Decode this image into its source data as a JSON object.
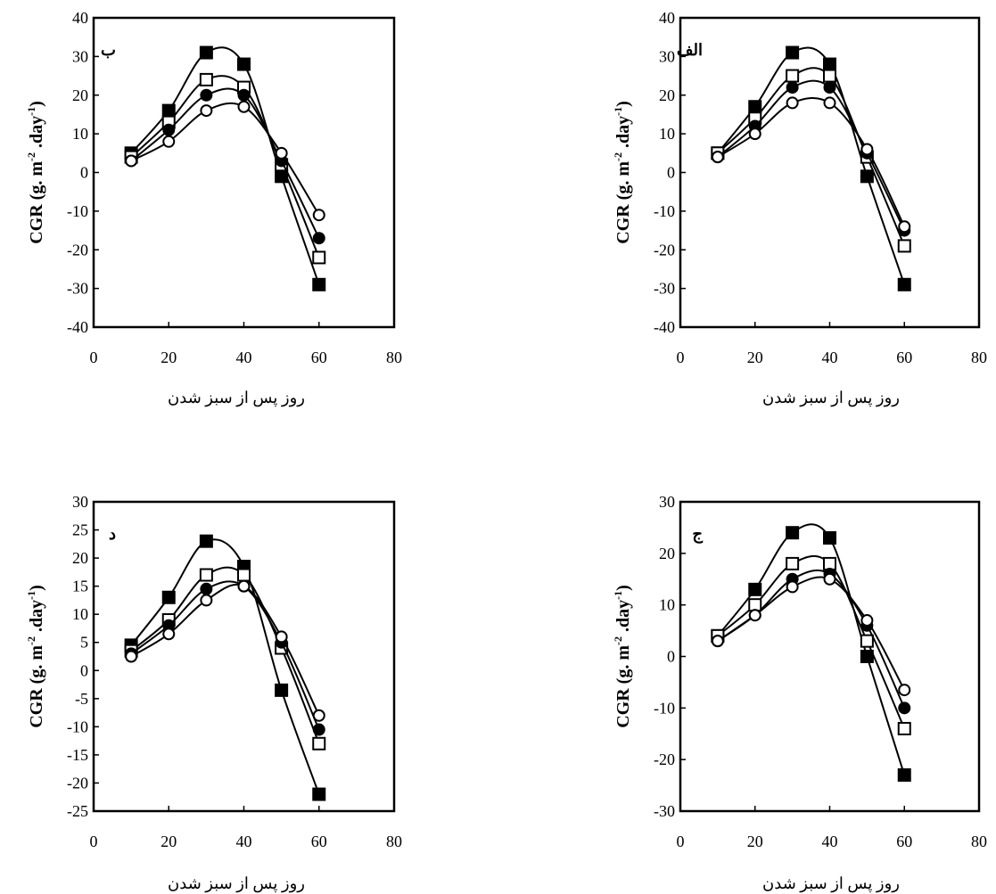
{
  "chart_data": [
    {
      "type": "line",
      "panel_label": "ب",
      "xlabel": "روز پس از سبز شدن",
      "ylabel": "CGR (g. m-2 .day-1)",
      "xlim": [
        0,
        80
      ],
      "ylim": [
        -40,
        40
      ],
      "xticks": [
        0,
        20,
        40,
        60,
        80
      ],
      "yticks": [
        -40,
        -30,
        -20,
        -10,
        0,
        10,
        20,
        30,
        40
      ],
      "x": [
        10,
        20,
        30,
        40,
        50,
        60
      ],
      "series": [
        {
          "marker": "filled-square",
          "values": [
            5,
            16,
            31,
            28,
            -1,
            -29
          ]
        },
        {
          "marker": "open-square",
          "values": [
            4,
            13,
            24,
            22,
            2,
            -22
          ]
        },
        {
          "marker": "filled-circle",
          "values": [
            3,
            11,
            20,
            20,
            3,
            -17
          ]
        },
        {
          "marker": "open-circle",
          "values": [
            3,
            8,
            16,
            17,
            5,
            -11
          ]
        }
      ]
    },
    {
      "type": "line",
      "panel_label": "الف",
      "xlabel": "روز پس از سبز شدن",
      "ylabel": "CGR (g. m-2 .day-1)",
      "xlim": [
        0,
        80
      ],
      "ylim": [
        -40,
        40
      ],
      "xticks": [
        0,
        20,
        40,
        60,
        80
      ],
      "yticks": [
        -40,
        -30,
        -20,
        -10,
        0,
        10,
        20,
        30,
        40
      ],
      "x": [
        10,
        20,
        30,
        40,
        50,
        60
      ],
      "series": [
        {
          "marker": "filled-square",
          "values": [
            5,
            17,
            31,
            28,
            -1,
            -29
          ]
        },
        {
          "marker": "open-square",
          "values": [
            5,
            14,
            25,
            25,
            4,
            -19
          ]
        },
        {
          "marker": "filled-circle",
          "values": [
            4,
            12,
            22,
            22,
            5,
            -15
          ]
        },
        {
          "marker": "open-circle",
          "values": [
            4,
            10,
            18,
            18,
            6,
            -14
          ]
        }
      ]
    },
    {
      "type": "line",
      "panel_label": "د",
      "xlabel": "روز پس از سبز شدن",
      "ylabel": "CGR (g. m-2 .day-1)",
      "xlim": [
        0,
        80
      ],
      "ylim": [
        -25,
        30
      ],
      "xticks": [
        0,
        20,
        40,
        60,
        80
      ],
      "yticks": [
        -25,
        -20,
        -15,
        -10,
        -5,
        0,
        5,
        10,
        15,
        20,
        25,
        30
      ],
      "x": [
        10,
        20,
        30,
        40,
        50,
        60
      ],
      "series": [
        {
          "marker": "filled-square",
          "values": [
            4.5,
            13,
            23,
            18.5,
            -3.5,
            -22
          ]
        },
        {
          "marker": "open-square",
          "values": [
            3.5,
            9,
            17,
            17,
            4,
            -13
          ]
        },
        {
          "marker": "filled-circle",
          "values": [
            3,
            8,
            14.5,
            15,
            5,
            -10.5
          ]
        },
        {
          "marker": "open-circle",
          "values": [
            2.5,
            6.5,
            12.5,
            15,
            6,
            -8
          ]
        }
      ]
    },
    {
      "type": "line",
      "panel_label": "ج",
      "xlabel": "روز پس از سبز شدن",
      "ylabel": "CGR (g. m-2 .day-1)",
      "xlim": [
        0,
        80
      ],
      "ylim": [
        -30,
        30
      ],
      "xticks": [
        0,
        20,
        40,
        60,
        80
      ],
      "yticks": [
        -30,
        -20,
        -10,
        0,
        10,
        20,
        30
      ],
      "x": [
        10,
        20,
        30,
        40,
        50,
        60
      ],
      "series": [
        {
          "marker": "filled-square",
          "values": [
            4,
            13,
            24,
            23,
            0,
            -23
          ]
        },
        {
          "marker": "open-square",
          "values": [
            4,
            10,
            18,
            18,
            3,
            -14
          ]
        },
        {
          "marker": "filled-circle",
          "values": [
            3,
            8,
            15,
            16,
            6,
            -10
          ]
        },
        {
          "marker": "open-circle",
          "values": [
            3,
            8,
            13.5,
            15,
            7,
            -6.5
          ]
        }
      ]
    }
  ],
  "ylabel_parts": {
    "main": "CGR (g. m",
    "exp1": "-2",
    "mid": " .day",
    "exp2": "-1",
    "end": ")"
  }
}
